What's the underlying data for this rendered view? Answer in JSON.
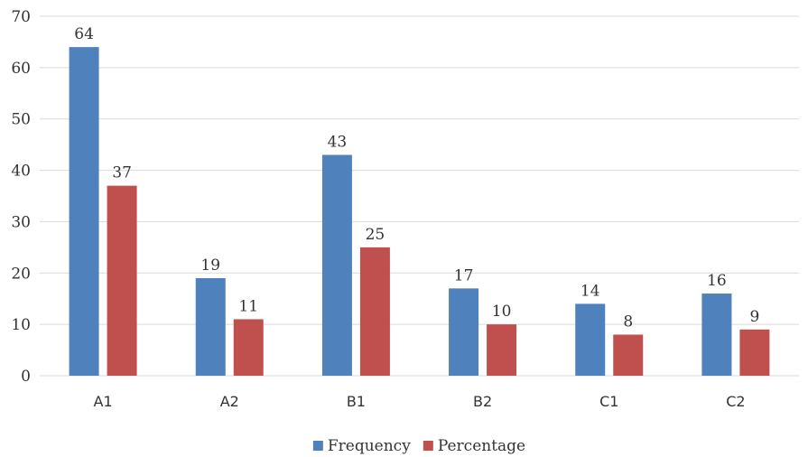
{
  "chart_data": {
    "type": "bar",
    "categories": [
      "A1",
      "A2",
      "B1",
      "B2",
      "C1",
      "C2"
    ],
    "series": [
      {
        "name": "Frequency",
        "values": [
          64,
          19,
          43,
          17,
          14,
          16
        ],
        "color": "#4f81bd"
      },
      {
        "name": "Percentage",
        "values": [
          37,
          11,
          25,
          10,
          8,
          9
        ],
        "color": "#c0504d"
      }
    ],
    "ylim": [
      0,
      70
    ],
    "yticks": [
      0,
      10,
      20,
      30,
      40,
      50,
      60,
      70
    ],
    "grid": true,
    "legend_position": "bottom",
    "data_labels": true
  }
}
